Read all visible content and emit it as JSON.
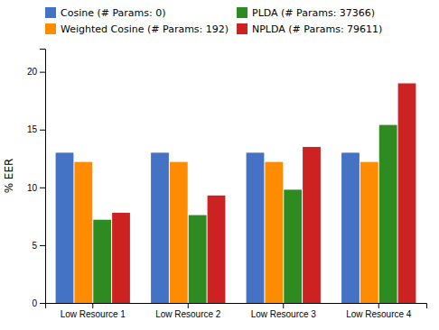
{
  "chart_data": {
    "type": "bar",
    "categories": [
      "Low Resource 1",
      "Low Resource 2",
      "Low Resource 3",
      "Low Resource 4"
    ],
    "series": [
      {
        "name": "Cosine (# Params: 0)",
        "color": "#4472C4",
        "values": [
          13.0,
          13.0,
          13.0,
          13.0
        ]
      },
      {
        "name": "Weighted Cosine (# Params: 192)",
        "color": "#FF8C00",
        "values": [
          12.2,
          12.2,
          12.2,
          12.2
        ]
      },
      {
        "name": "PLDA (# Params: 37366)",
        "color": "#2E8B22",
        "values": [
          7.2,
          7.6,
          9.8,
          15.4
        ]
      },
      {
        "name": "NPLDA (# Params: 79611)",
        "color": "#CC2222",
        "values": [
          7.8,
          9.3,
          13.5,
          19.0
        ]
      }
    ],
    "ylabel": "% EER",
    "ylim": [
      0,
      22
    ],
    "yticks": [
      0,
      5,
      10,
      15,
      20
    ],
    "grid": false,
    "legend": "upper left"
  }
}
